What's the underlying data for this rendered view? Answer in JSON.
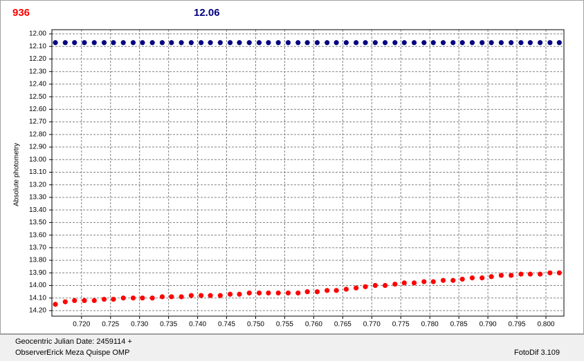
{
  "header": {
    "left": "936",
    "right": "12.06"
  },
  "chart_data": {
    "type": "scatter",
    "y_label": "Absolute photometry",
    "grid": true,
    "y_inverted": true,
    "xlim": [
      0.7149,
      0.8031
    ],
    "ylim": [
      11.967,
      14.244
    ],
    "xticks": [
      {
        "value": 0.72,
        "label": "0.720"
      },
      {
        "value": 0.725,
        "label": "0.725"
      },
      {
        "value": 0.73,
        "label": "0.730"
      },
      {
        "value": 0.735,
        "label": "0.735"
      },
      {
        "value": 0.74,
        "label": "0.740"
      },
      {
        "value": 0.745,
        "label": "0.745"
      },
      {
        "value": 0.75,
        "label": "0.750"
      },
      {
        "value": 0.755,
        "label": "0.755"
      },
      {
        "value": 0.76,
        "label": "0.760"
      },
      {
        "value": 0.765,
        "label": "0.765"
      },
      {
        "value": 0.77,
        "label": "0.770"
      },
      {
        "value": 0.775,
        "label": "0.775"
      },
      {
        "value": 0.78,
        "label": "0.780"
      },
      {
        "value": 0.785,
        "label": "0.785"
      },
      {
        "value": 0.79,
        "label": "0.790"
      },
      {
        "value": 0.795,
        "label": "0.795"
      },
      {
        "value": 0.8,
        "label": "0.800"
      }
    ],
    "yticks": [
      {
        "value": 12.0,
        "label": "12.00"
      },
      {
        "value": 12.1,
        "label": "12.10"
      },
      {
        "value": 12.2,
        "label": "12.20"
      },
      {
        "value": 12.3,
        "label": "12.30"
      },
      {
        "value": 12.4,
        "label": "12.40"
      },
      {
        "value": 12.5,
        "label": "12.50"
      },
      {
        "value": 12.6,
        "label": "12.60"
      },
      {
        "value": 12.7,
        "label": "12.70"
      },
      {
        "value": 12.8,
        "label": "12.80"
      },
      {
        "value": 12.9,
        "label": "12.90"
      },
      {
        "value": 13.0,
        "label": "13.00"
      },
      {
        "value": 13.1,
        "label": "13.10"
      },
      {
        "value": 13.2,
        "label": "13.20"
      },
      {
        "value": 13.3,
        "label": "13.30"
      },
      {
        "value": 13.4,
        "label": "13.40"
      },
      {
        "value": 13.5,
        "label": "13.50"
      },
      {
        "value": 13.6,
        "label": "13.60"
      },
      {
        "value": 13.7,
        "label": "13.70"
      },
      {
        "value": 13.8,
        "label": "13.80"
      },
      {
        "value": 13.9,
        "label": "13.90"
      },
      {
        "value": 14.0,
        "label": "14.00"
      },
      {
        "value": 14.1,
        "label": "14.10"
      },
      {
        "value": 14.2,
        "label": "14.20"
      }
    ],
    "x": [
      0.7155,
      0.7172,
      0.7188,
      0.7205,
      0.7222,
      0.7239,
      0.7255,
      0.7272,
      0.7289,
      0.7305,
      0.7322,
      0.7339,
      0.7355,
      0.7372,
      0.7389,
      0.7406,
      0.7422,
      0.7439,
      0.7456,
      0.7472,
      0.7489,
      0.7506,
      0.7522,
      0.7539,
      0.7556,
      0.7573,
      0.7589,
      0.7606,
      0.7623,
      0.7639,
      0.7656,
      0.7673,
      0.7689,
      0.7706,
      0.7723,
      0.774,
      0.7756,
      0.7773,
      0.779,
      0.7806,
      0.7823,
      0.784,
      0.7856,
      0.7873,
      0.789,
      0.7906,
      0.7923,
      0.794,
      0.7957,
      0.7973,
      0.799,
      0.8007,
      0.8023
    ],
    "series": [
      {
        "color": "#000080",
        "values": [
          12.07,
          12.07,
          12.07,
          12.07,
          12.07,
          12.07,
          12.07,
          12.07,
          12.07,
          12.07,
          12.07,
          12.07,
          12.07,
          12.07,
          12.07,
          12.07,
          12.07,
          12.07,
          12.07,
          12.07,
          12.07,
          12.07,
          12.07,
          12.07,
          12.07,
          12.07,
          12.07,
          12.07,
          12.07,
          12.07,
          12.07,
          12.07,
          12.07,
          12.07,
          12.07,
          12.07,
          12.07,
          12.07,
          12.07,
          12.07,
          12.07,
          12.07,
          12.07,
          12.07,
          12.07,
          12.07,
          12.07,
          12.07,
          12.07,
          12.07,
          12.07,
          12.07,
          12.07
        ]
      },
      {
        "color": "#ff0000",
        "values": [
          14.15,
          14.13,
          14.12,
          14.12,
          14.12,
          14.11,
          14.11,
          14.1,
          14.1,
          14.1,
          14.1,
          14.09,
          14.09,
          14.09,
          14.08,
          14.08,
          14.08,
          14.08,
          14.07,
          14.07,
          14.06,
          14.06,
          14.06,
          14.06,
          14.06,
          14.06,
          14.05,
          14.05,
          14.04,
          14.04,
          14.03,
          14.02,
          14.01,
          14.0,
          14.0,
          13.99,
          13.98,
          13.98,
          13.97,
          13.97,
          13.96,
          13.96,
          13.95,
          13.94,
          13.94,
          13.93,
          13.92,
          13.92,
          13.91,
          13.91,
          13.91,
          13.9,
          13.9
        ]
      }
    ]
  },
  "footer": {
    "date": "Geocentric Julian Date: 2459114 +",
    "observer": "Erick Meza Quispe OMP",
    "observer_label": "Observer:",
    "version": "FotoDif 3.109"
  }
}
